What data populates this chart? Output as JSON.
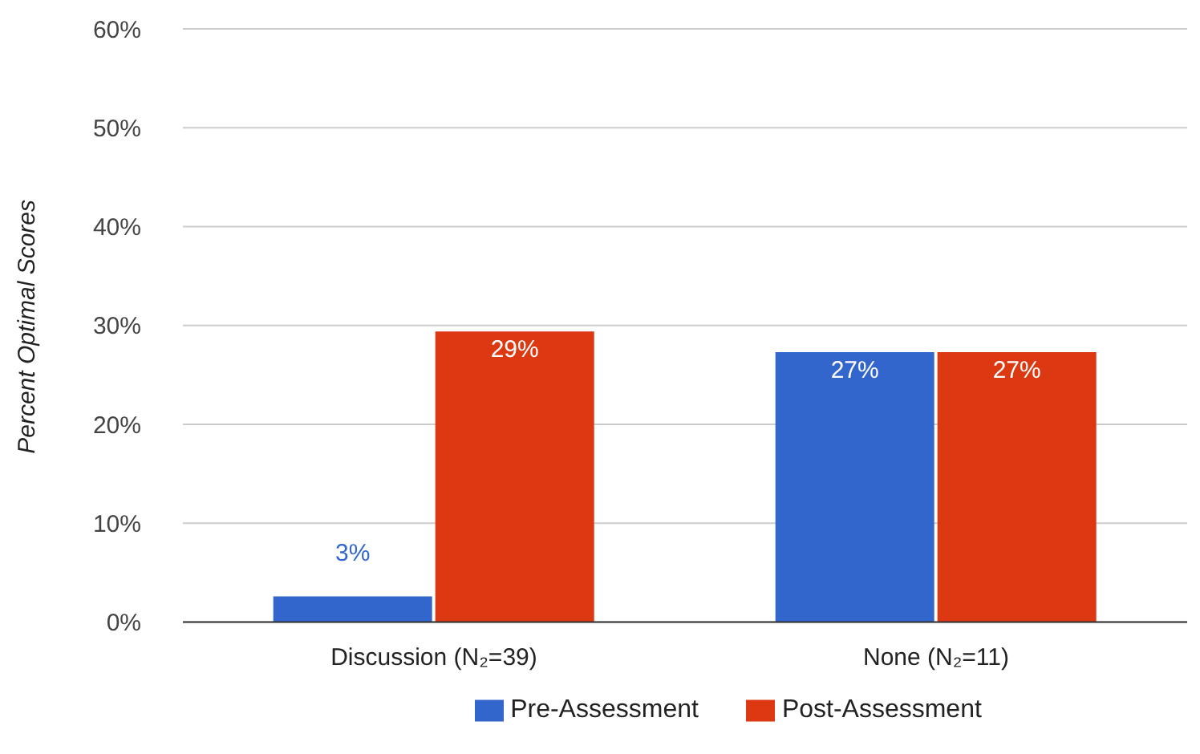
{
  "chart_data": {
    "type": "bar",
    "ylabel": "Percent Optimal Scores",
    "categories": [
      "Discussion (N₂=39)",
      "None (N₂=11)"
    ],
    "series": [
      {
        "name": "Pre-Assessment",
        "color": "#3366cc",
        "values": [
          2.6,
          27.3
        ],
        "value_labels": [
          "3%",
          "27%"
        ]
      },
      {
        "name": "Post-Assessment",
        "color": "#dc3912",
        "values": [
          29.4,
          27.3
        ],
        "value_labels": [
          "29%",
          "27%"
        ]
      }
    ],
    "ylim": [
      0,
      60
    ],
    "yticks": [
      {
        "value": 0,
        "label": "0%"
      },
      {
        "value": 10,
        "label": "10%"
      },
      {
        "value": 20,
        "label": "20%"
      },
      {
        "value": 30,
        "label": "30%"
      },
      {
        "value": 40,
        "label": "40%"
      },
      {
        "value": 50,
        "label": "50%"
      },
      {
        "value": 60,
        "label": "60%"
      }
    ],
    "grid": "y",
    "legend": "bottom"
  }
}
